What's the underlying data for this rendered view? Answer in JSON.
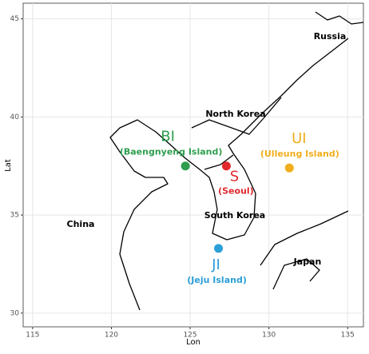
{
  "chart_data": {
    "type": "map",
    "x_label": "Lon",
    "y_label": "Lat",
    "xlim": [
      114.4,
      136
    ],
    "ylim": [
      29.3,
      45.8
    ],
    "xticks": [
      115,
      120,
      125,
      130,
      135
    ],
    "yticks": [
      30,
      35,
      40,
      45
    ],
    "grid": true,
    "regions": [
      "Russia",
      "North Korea",
      "South Korea",
      "China",
      "Japan"
    ],
    "series": [
      {
        "name": "BI",
        "subtitle": "(Baengnyeng Island)",
        "color": "#2e9e4f",
        "x": [
          124.7
        ],
        "values": [
          37.5
        ]
      },
      {
        "name": "S",
        "subtitle": "(Seoul)",
        "color": "#e0282e",
        "x": [
          127.3
        ],
        "values": [
          37.5
        ]
      },
      {
        "name": "UI",
        "subtitle": "(Ulleung Island)",
        "color": "#f0ae1c",
        "x": [
          131.3
        ],
        "values": [
          37.4
        ]
      },
      {
        "name": "JI",
        "subtitle": "(Jeju Island)",
        "color": "#2b9fd6",
        "x": [
          126.8
        ],
        "values": [
          33.3
        ]
      }
    ]
  }
}
